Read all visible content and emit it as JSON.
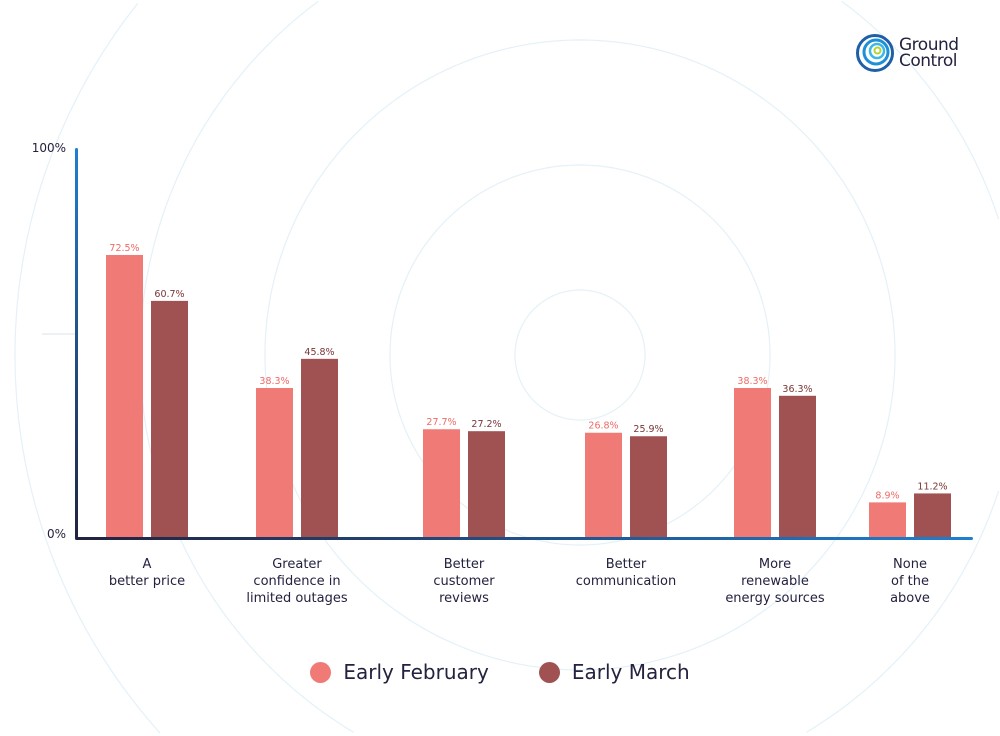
{
  "brand": {
    "name_line1": "Ground",
    "name_line2": "Control"
  },
  "chart_data": {
    "type": "bar",
    "categories": [
      "A\nbetter price",
      "Greater\nconfidence in\nlimited outages",
      "Better\ncustomer\nreviews",
      "Better\ncommunication",
      "More\nrenewable\nenergy sources",
      "None\nof the\nabove"
    ],
    "series": [
      {
        "name": "Early February",
        "values": [
          72.5,
          38.3,
          27.7,
          26.8,
          38.3,
          8.9
        ],
        "labels": [
          "72.5%",
          "38.3%",
          "27.7%",
          "26.8%",
          "38.3%",
          "8.9%"
        ],
        "color": "#ef7a76"
      },
      {
        "name": "Early March",
        "values": [
          60.7,
          45.8,
          27.2,
          25.9,
          36.3,
          11.2
        ],
        "labels": [
          "60.7%",
          "45.8%",
          "27.2%",
          "25.9%",
          "36.3%",
          "11.2%"
        ],
        "color": "#a05252"
      }
    ],
    "yticks": [
      "0%",
      "100%"
    ],
    "ylim": [
      0,
      100
    ],
    "legend": "bottom",
    "grid": false
  }
}
